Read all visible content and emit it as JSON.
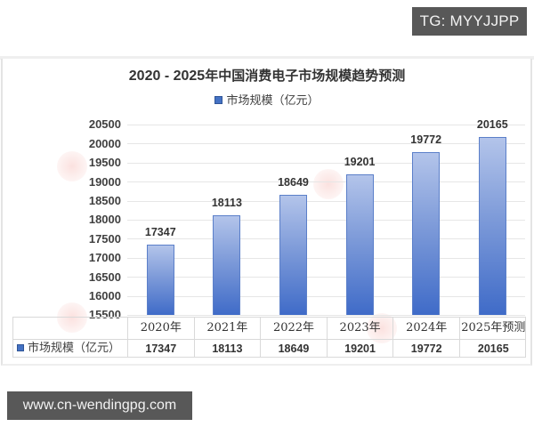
{
  "overlay": {
    "top_tag": "TG: MYYJJPP",
    "bottom_tag": "www.cn-wendingpg.com"
  },
  "chart_data": {
    "type": "bar",
    "title": "2020 - 2025年中国消费电子市场规模趋势预测",
    "title_year_part": "2020 - 2025",
    "title_text_part": "年中国消费电子市场规模趋势预测",
    "legend": [
      "市场规模（亿元）"
    ],
    "categories": [
      "2020年",
      "2021年",
      "2022年",
      "2023年",
      "2024年",
      "2025年预测"
    ],
    "series": [
      {
        "name": "市场规模（亿元）",
        "values": [
          17347,
          18113,
          18649,
          19201,
          19772,
          20165
        ],
        "color": "#4472c4"
      }
    ],
    "value_labels": [
      "17347",
      "18113",
      "18649",
      "19201",
      "19772",
      "20165"
    ],
    "xlabel": "",
    "ylabel": "",
    "ylim": [
      15500,
      20500
    ],
    "y_ticks": [
      "20500",
      "20000",
      "19500",
      "19000",
      "18500",
      "18000",
      "17500",
      "17000",
      "16500",
      "16000",
      "15500"
    ],
    "grid": true,
    "legend_position": "top",
    "data_table": {
      "row_label": "市场规模（亿元）",
      "headers": [
        "2020年",
        "2021年",
        "2022年",
        "2023年",
        "2024年",
        "2025年预测"
      ],
      "values": [
        "17347",
        "18113",
        "18649",
        "19201",
        "19772",
        "20165"
      ]
    }
  }
}
